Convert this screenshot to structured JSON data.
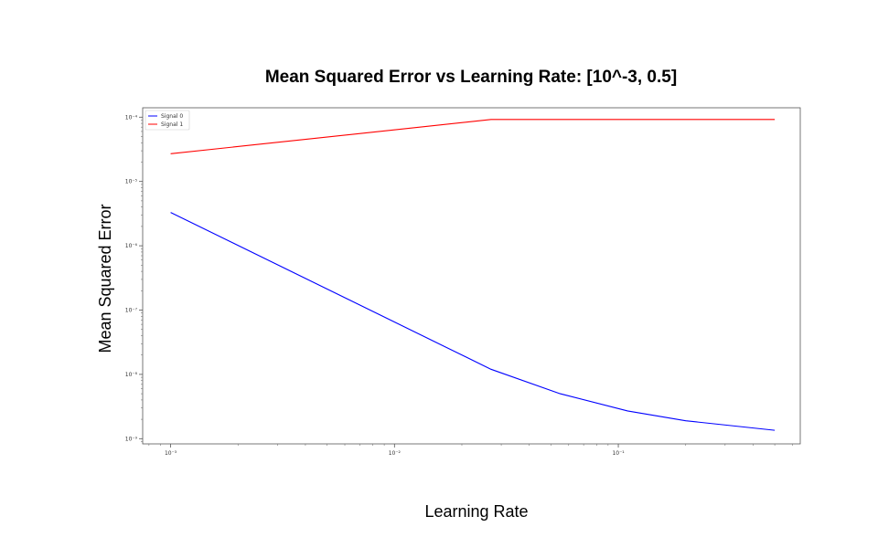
{
  "chart_data": {
    "type": "line",
    "title": "Mean Squared Error vs Learning Rate: [10^-3, 0.5]",
    "xlabel": "Learning Rate",
    "ylabel": "Mean Squared Error",
    "xscale": "log",
    "yscale": "log",
    "xlim": [
      0.00075,
      0.65
    ],
    "ylim": [
      8.3e-10,
      0.00014
    ],
    "grid": false,
    "legend_position": "top-left",
    "x_ticks": [
      {
        "value": 0.001,
        "label": "10⁻³"
      },
      {
        "value": 0.01,
        "label": "10⁻²"
      },
      {
        "value": 0.1,
        "label": "10⁻¹"
      }
    ],
    "y_ticks": [
      {
        "value": 1e-09,
        "label": "10⁻⁹"
      },
      {
        "value": 1e-08,
        "label": "10⁻⁸"
      },
      {
        "value": 1e-07,
        "label": "10⁻⁷"
      },
      {
        "value": 1e-06,
        "label": "10⁻⁶"
      },
      {
        "value": 1e-05,
        "label": "10⁻⁵"
      },
      {
        "value": 0.0001,
        "label": "10⁻⁴"
      }
    ],
    "series": [
      {
        "name": "Signal 0",
        "color": "#0000ff",
        "x": [
          0.001,
          0.027,
          0.055,
          0.11,
          0.2,
          0.5
        ],
        "y": [
          3.3e-06,
          1.2e-08,
          5e-09,
          2.7e-09,
          1.9e-09,
          1.35e-09
        ]
      },
      {
        "name": "Signal 1",
        "color": "#ff0000",
        "x": [
          0.001,
          0.027,
          0.5
        ],
        "y": [
          2.7e-05,
          9.2e-05,
          9.2e-05
        ]
      }
    ]
  }
}
